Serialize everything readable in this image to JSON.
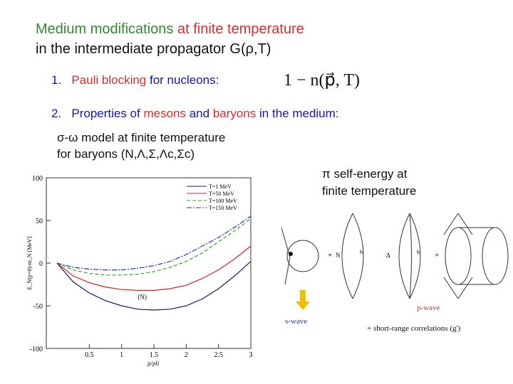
{
  "title": {
    "part1": "Medium modifications",
    "part2": " at finite temperature",
    "line2": "in the intermediate propagator G(ρ,T)"
  },
  "items": [
    {
      "number": "1.",
      "highlight": "Pauli blocking",
      "rest": " for nucleons:",
      "formula": "1 − n(p⃗, T)"
    },
    {
      "number": "2.",
      "parts": [
        "Properties of ",
        "mesons",
        " and ",
        "baryons",
        " in the medium:"
      ]
    }
  ],
  "model": {
    "line1": "σ-ω model at finite temperature",
    "line2": "for baryons (N,Λ,Σ,Λc,Σc)"
  },
  "pion": {
    "line1": "π self-energy at",
    "line2": "finite temperature"
  },
  "plot": {
    "type": "line",
    "y_label": "E_N(p=0)-m_N [MeV]",
    "x_label": "ρ/ρ0",
    "annotation": "(N)",
    "xlim": [
      0,
      3
    ],
    "ylim": [
      -100,
      100
    ],
    "xticks": [
      0.5,
      1,
      1.5,
      2,
      2.5,
      3
    ],
    "yticks": [
      -100,
      -50,
      0,
      50,
      100
    ],
    "x": [
      0,
      0.25,
      0.5,
      0.75,
      1,
      1.25,
      1.5,
      1.75,
      2,
      2.25,
      2.5,
      2.75,
      3
    ],
    "series": [
      {
        "name": "T=1 MeV",
        "color": "#1a1a6e",
        "dash": "",
        "values": [
          0,
          -22,
          -35,
          -44,
          -50,
          -54,
          -55,
          -54,
          -50,
          -42,
          -30,
          -15,
          2
        ]
      },
      {
        "name": "T=50 MeV",
        "color": "#e02020",
        "dash": "",
        "values": [
          0,
          -15,
          -23,
          -28,
          -31,
          -32,
          -32,
          -30,
          -26,
          -18,
          -8,
          5,
          20
        ]
      },
      {
        "name": "T=100 MeV",
        "color": "#20b020",
        "dash": "5 3",
        "values": [
          0,
          -8,
          -12,
          -14,
          -14,
          -13,
          -10,
          -5,
          2,
          12,
          25,
          38,
          52
        ]
      },
      {
        "name": "T=150 MeV",
        "color": "#2030c0",
        "dash": "7 2 2 2",
        "values": [
          0,
          -5,
          -7,
          -8,
          -8,
          -6,
          -3,
          2,
          10,
          20,
          30,
          42,
          55
        ]
      }
    ]
  },
  "diagram": {
    "labels": [
      "N",
      "h",
      "Δ",
      "h"
    ],
    "s_wave": "s-wave",
    "p_wave": "p-wave",
    "plus": "+",
    "correlations": "+ short-range correlations (g')"
  }
}
